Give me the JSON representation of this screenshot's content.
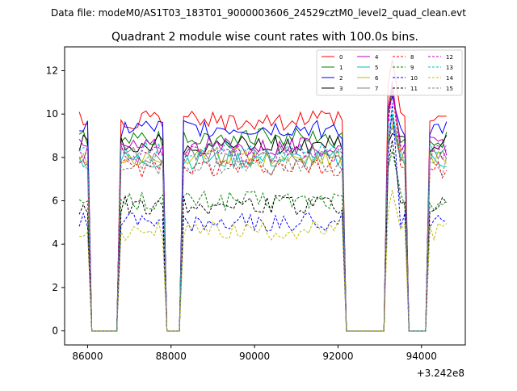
{
  "suptitle": "Data file: modeM0/AS1T03_183T01_9000003606_24529cztM0_level2_quad_clean.evt",
  "chart_data": {
    "type": "line",
    "title": "Quadrant 2 module wise count rates with 100.0s bins.",
    "xlabel": "",
    "ylabel": "",
    "x_offset_label": "+3.242e8",
    "xlim": [
      85450,
      95050
    ],
    "ylim": [
      -0.65,
      13.1
    ],
    "xticks": [
      86000,
      88000,
      90000,
      92000,
      94000
    ],
    "yticks": [
      0,
      2,
      4,
      6,
      8,
      10,
      12
    ],
    "legend_position": "top-right",
    "grid": false,
    "x_start": 85800,
    "x_step": 100,
    "n_points": 89,
    "active_intervals": [
      [
        85800,
        86000
      ],
      [
        86800,
        87800
      ],
      [
        88300,
        92100
      ],
      [
        93200,
        93600
      ],
      [
        94200,
        94600
      ]
    ],
    "series": [
      {
        "name": "0",
        "color": "#ff0000",
        "style": "solid",
        "level": 9.7,
        "peak": 12.5
      },
      {
        "name": "1",
        "color": "#008000",
        "style": "solid",
        "level": 8.9,
        "peak": 11.2
      },
      {
        "name": "2",
        "color": "#0000ff",
        "style": "solid",
        "level": 9.3,
        "peak": 10.8
      },
      {
        "name": "3",
        "color": "#000000",
        "style": "solid",
        "level": 8.6,
        "peak": 9.1
      },
      {
        "name": "4",
        "color": "#bf00bf",
        "style": "solid",
        "level": 8.5,
        "peak": 11.5
      },
      {
        "name": "5",
        "color": "#00bfbf",
        "style": "solid",
        "level": 7.9,
        "peak": 10.0
      },
      {
        "name": "6",
        "color": "#bfbf00",
        "style": "solid",
        "level": 8.0,
        "peak": 9.5
      },
      {
        "name": "7",
        "color": "#808080",
        "style": "solid",
        "level": 8.1,
        "peak": 9.8
      },
      {
        "name": "8",
        "color": "#ff0000",
        "style": "dashed",
        "level": 7.5,
        "peak": 11.2
      },
      {
        "name": "9",
        "color": "#008000",
        "style": "dashed",
        "level": 6.0,
        "peak": 8.3
      },
      {
        "name": "10",
        "color": "#0000ff",
        "style": "dashed",
        "level": 5.0,
        "peak": 10.5
      },
      {
        "name": "11",
        "color": "#000000",
        "style": "dashed",
        "level": 5.8,
        "peak": 8.8
      },
      {
        "name": "12",
        "color": "#bf00bf",
        "style": "dashed",
        "level": 8.2,
        "peak": 11.0
      },
      {
        "name": "13",
        "color": "#00bfbf",
        "style": "dashed",
        "level": 8.3,
        "peak": 10.2
      },
      {
        "name": "14",
        "color": "#bfbf00",
        "style": "dashed",
        "level": 4.6,
        "peak": 6.5
      },
      {
        "name": "15",
        "color": "#808080",
        "style": "dashed",
        "level": 7.6,
        "peak": 9.4
      }
    ]
  }
}
